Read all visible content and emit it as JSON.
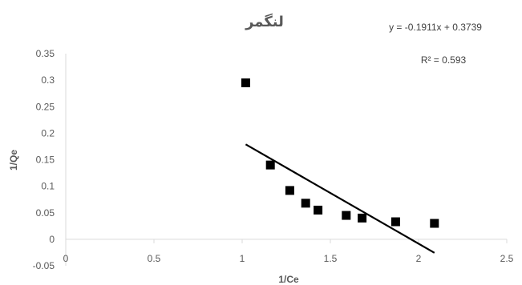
{
  "chart_data": {
    "type": "scatter",
    "title": "لنگمر",
    "xlabel": "1/Ce",
    "ylabel": "1/Qe",
    "xlim": [
      0,
      2.5
    ],
    "ylim": [
      -0.05,
      0.35
    ],
    "x_ticks": [
      "0",
      "0.5",
      "1",
      "1.5",
      "2",
      "2.5"
    ],
    "y_ticks": [
      "-0.05",
      "0",
      "0.05",
      "0.1",
      "0.15",
      "0.2",
      "0.25",
      "0.3",
      "0.35"
    ],
    "grid": false,
    "legend": "none",
    "marker": "square",
    "marker_color": "#000000",
    "points": [
      {
        "x": 1.02,
        "y": 0.295
      },
      {
        "x": 1.16,
        "y": 0.14
      },
      {
        "x": 1.27,
        "y": 0.092
      },
      {
        "x": 1.36,
        "y": 0.068
      },
      {
        "x": 1.43,
        "y": 0.055
      },
      {
        "x": 1.59,
        "y": 0.045
      },
      {
        "x": 1.68,
        "y": 0.04
      },
      {
        "x": 1.87,
        "y": 0.033
      },
      {
        "x": 2.09,
        "y": 0.03
      }
    ],
    "trendline": {
      "type": "linear",
      "slope": -0.1911,
      "intercept": 0.3739,
      "x_range": [
        1.02,
        2.09
      ],
      "color": "#000000"
    },
    "annotations": {
      "equation": "y = -0.1911x + 0.3739",
      "r_squared": "R² = 0.593"
    }
  }
}
